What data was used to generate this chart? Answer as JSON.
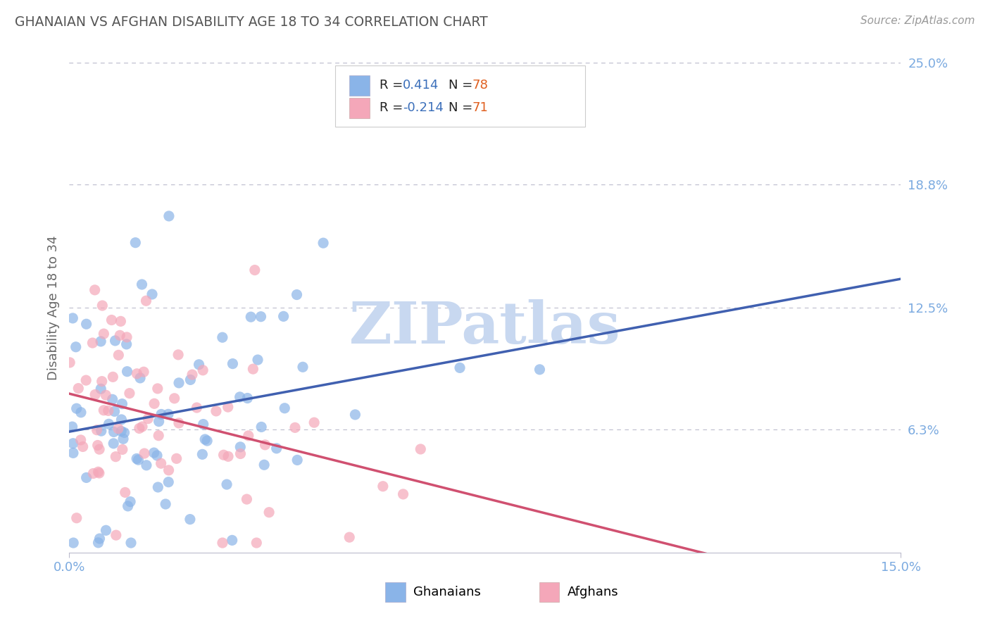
{
  "title": "GHANAIAN VS AFGHAN DISABILITY AGE 18 TO 34 CORRELATION CHART",
  "source_text": "Source: ZipAtlas.com",
  "ylabel": "Disability Age 18 to 34",
  "xlim": [
    0.0,
    0.15
  ],
  "ylim": [
    0.0,
    0.25
  ],
  "xtick_positions": [
    0.0,
    0.15
  ],
  "xtick_labels": [
    "0.0%",
    "15.0%"
  ],
  "ytick_positions": [
    0.063,
    0.125,
    0.188,
    0.25
  ],
  "ytick_labels": [
    "6.3%",
    "12.5%",
    "18.8%",
    "25.0%"
  ],
  "ghanaian_color": "#8ab4e8",
  "afghan_color": "#f4a7b9",
  "ghanaian_line_color": "#4060b0",
  "afghan_line_color": "#d05070",
  "ghanaian_R": 0.414,
  "ghanaian_N": 78,
  "afghan_R": -0.214,
  "afghan_N": 71,
  "watermark": "ZIPatlas",
  "watermark_color": "#c8d8f0",
  "title_color": "#555555",
  "axis_label_color": "#666666",
  "tick_color": "#7baae0",
  "legend_blue_color": "#3b6fba",
  "legend_orange_color": "#e06020",
  "grid_color": "#bbbbcc",
  "background_color": "#ffffff",
  "ghanaian_seed": 7,
  "afghan_seed": 13,
  "scatter_size": 120,
  "scatter_alpha": 0.7,
  "line_width": 2.5
}
